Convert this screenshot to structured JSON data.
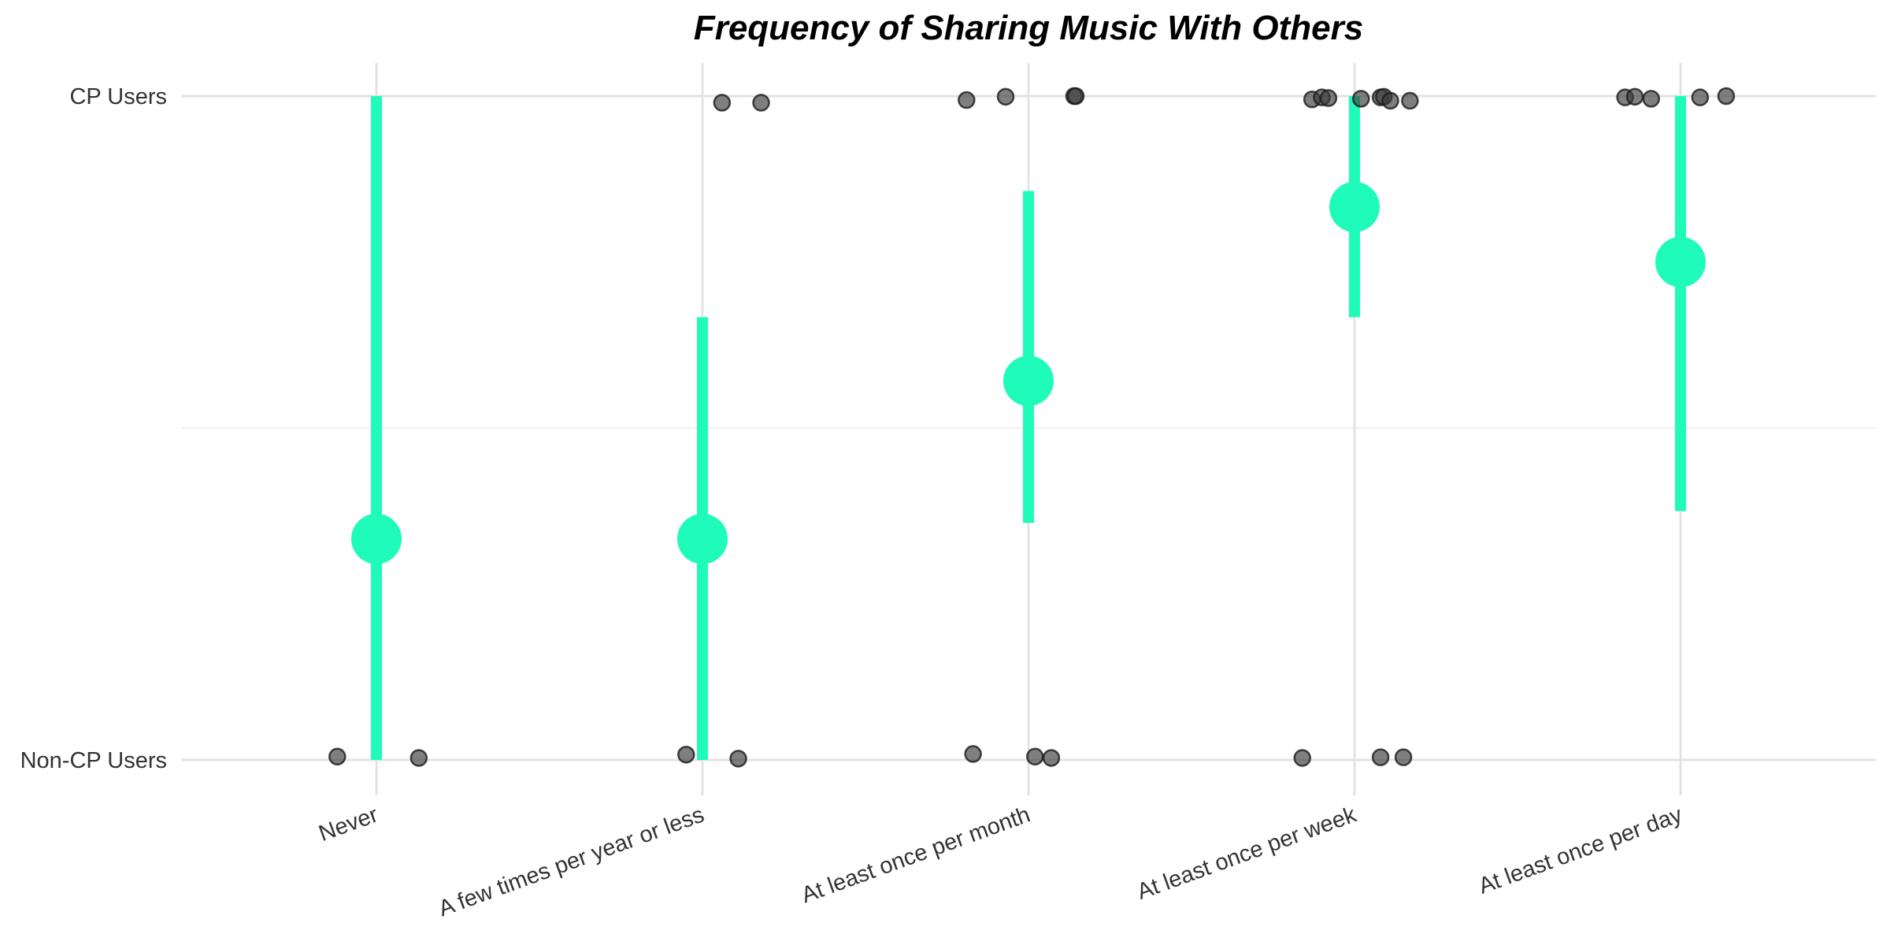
{
  "chart_data": {
    "type": "scatter",
    "title": "Frequency of Sharing Music With Others",
    "xlabel": "",
    "ylabel": "",
    "categories": [
      "Never",
      "A few times per year or less",
      "At least once per month",
      "At least once per week",
      "At least once per day"
    ],
    "y_categories": [
      "Non-CP Users",
      "CP Users"
    ],
    "ylim": [
      0,
      1
    ],
    "grid": true,
    "legend": "none",
    "summary": [
      {
        "category": "Never",
        "mean": 0.333,
        "lower": 0.0,
        "upper": 1.0
      },
      {
        "category": "A few times per year or less",
        "mean": 0.333,
        "lower": 0.0,
        "upper": 0.667
      },
      {
        "category": "At least once per month",
        "mean": 0.571,
        "lower": 0.357,
        "upper": 0.857
      },
      {
        "category": "At least once per week",
        "mean": 0.833,
        "lower": 0.667,
        "upper": 1.0
      },
      {
        "category": "At least once per day",
        "mean": 0.75,
        "lower": 0.375,
        "upper": 1.0
      }
    ],
    "points": [
      {
        "category": "Never",
        "jitter": -0.12,
        "y": 0.005
      },
      {
        "category": "Never",
        "jitter": 0.13,
        "y": 0.003
      },
      {
        "category": "A few times per year or less",
        "jitter": 0.06,
        "y": 0.99
      },
      {
        "category": "A few times per year or less",
        "jitter": 0.18,
        "y": 0.99
      },
      {
        "category": "A few times per year or less",
        "jitter": -0.05,
        "y": 0.008
      },
      {
        "category": "A few times per year or less",
        "jitter": 0.11,
        "y": 0.002
      },
      {
        "category": "At least once per month",
        "jitter": -0.19,
        "y": 0.994
      },
      {
        "category": "At least once per month",
        "jitter": -0.07,
        "y": 0.999
      },
      {
        "category": "At least once per month",
        "jitter": 0.14,
        "y": 1.0
      },
      {
        "category": "At least once per month",
        "jitter": 0.145,
        "y": 1.0
      },
      {
        "category": "At least once per month",
        "jitter": -0.17,
        "y": 0.009
      },
      {
        "category": "At least once per month",
        "jitter": 0.02,
        "y": 0.005
      },
      {
        "category": "At least once per month",
        "jitter": 0.07,
        "y": 0.003
      },
      {
        "category": "At least once per week",
        "jitter": -0.13,
        "y": 0.995
      },
      {
        "category": "At least once per week",
        "jitter": -0.1,
        "y": 0.998
      },
      {
        "category": "At least once per week",
        "jitter": -0.08,
        "y": 0.997
      },
      {
        "category": "At least once per week",
        "jitter": 0.02,
        "y": 0.996
      },
      {
        "category": "At least once per week",
        "jitter": 0.08,
        "y": 0.998
      },
      {
        "category": "At least once per week",
        "jitter": 0.09,
        "y": 0.999
      },
      {
        "category": "At least once per week",
        "jitter": 0.11,
        "y": 0.993
      },
      {
        "category": "At least once per week",
        "jitter": 0.17,
        "y": 0.993
      },
      {
        "category": "At least once per week",
        "jitter": -0.16,
        "y": 0.003
      },
      {
        "category": "At least once per week",
        "jitter": 0.08,
        "y": 0.004
      },
      {
        "category": "At least once per week",
        "jitter": 0.15,
        "y": 0.004
      },
      {
        "category": "At least once per day",
        "jitter": -0.17,
        "y": 0.998
      },
      {
        "category": "At least once per day",
        "jitter": -0.14,
        "y": 0.999
      },
      {
        "category": "At least once per day",
        "jitter": -0.09,
        "y": 0.996
      },
      {
        "category": "At least once per day",
        "jitter": 0.06,
        "y": 0.998
      },
      {
        "category": "At least once per day",
        "jitter": 0.14,
        "y": 1.0
      }
    ]
  },
  "colors": {
    "summary": "#1ffbb8",
    "points": "#3a3a3a",
    "points_stroke": "#1a1a1a",
    "grid": "#e3e3e3",
    "text": "#333333"
  }
}
